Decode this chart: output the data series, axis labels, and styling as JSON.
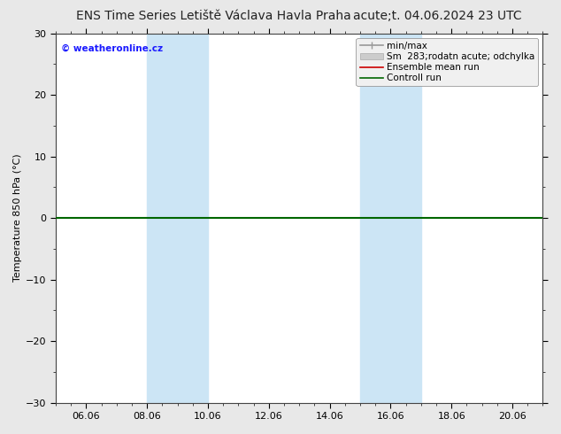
{
  "title_left": "ENS Time Series Letiště Václava Havla Praha",
  "title_right": "acute;t. 04.06.2024 23 UTC",
  "ylabel": "Temperature 850 hPa (°C)",
  "ylim": [
    -30,
    30
  ],
  "yticks": [
    -30,
    -20,
    -10,
    0,
    10,
    20,
    30
  ],
  "xlim": [
    0,
    16
  ],
  "xtick_labels": [
    "06.06",
    "08.06",
    "10.06",
    "12.06",
    "14.06",
    "16.06",
    "18.06",
    "20.06"
  ],
  "xtick_positions": [
    1,
    3,
    5,
    7,
    9,
    11,
    13,
    15
  ],
  "shaded_bands": [
    {
      "xstart": 3,
      "xend": 5
    },
    {
      "xstart": 10,
      "xend": 12
    }
  ],
  "shade_color": "#cce5f5",
  "zero_line_color": "#006600",
  "copyright_text": "© weatheronline.cz",
  "copyright_color": "#1a1aff",
  "legend_items": [
    {
      "label": "min/max",
      "color": "#999999",
      "lw": 1.2
    },
    {
      "label": "Sm  283;rodatn acute; odchylka",
      "color": "#cccccc",
      "lw": 6
    },
    {
      "label": "Ensemble mean run",
      "color": "#cc0000",
      "lw": 1.2
    },
    {
      "label": "Controll run",
      "color": "#006600",
      "lw": 1.2
    }
  ],
  "fig_bg_color": "#e8e8e8",
  "plot_bg_color": "#ffffff",
  "title_fontsize": 10,
  "axis_label_fontsize": 8,
  "tick_fontsize": 8,
  "legend_fontsize": 7.5,
  "zero_linewidth": 1.5
}
